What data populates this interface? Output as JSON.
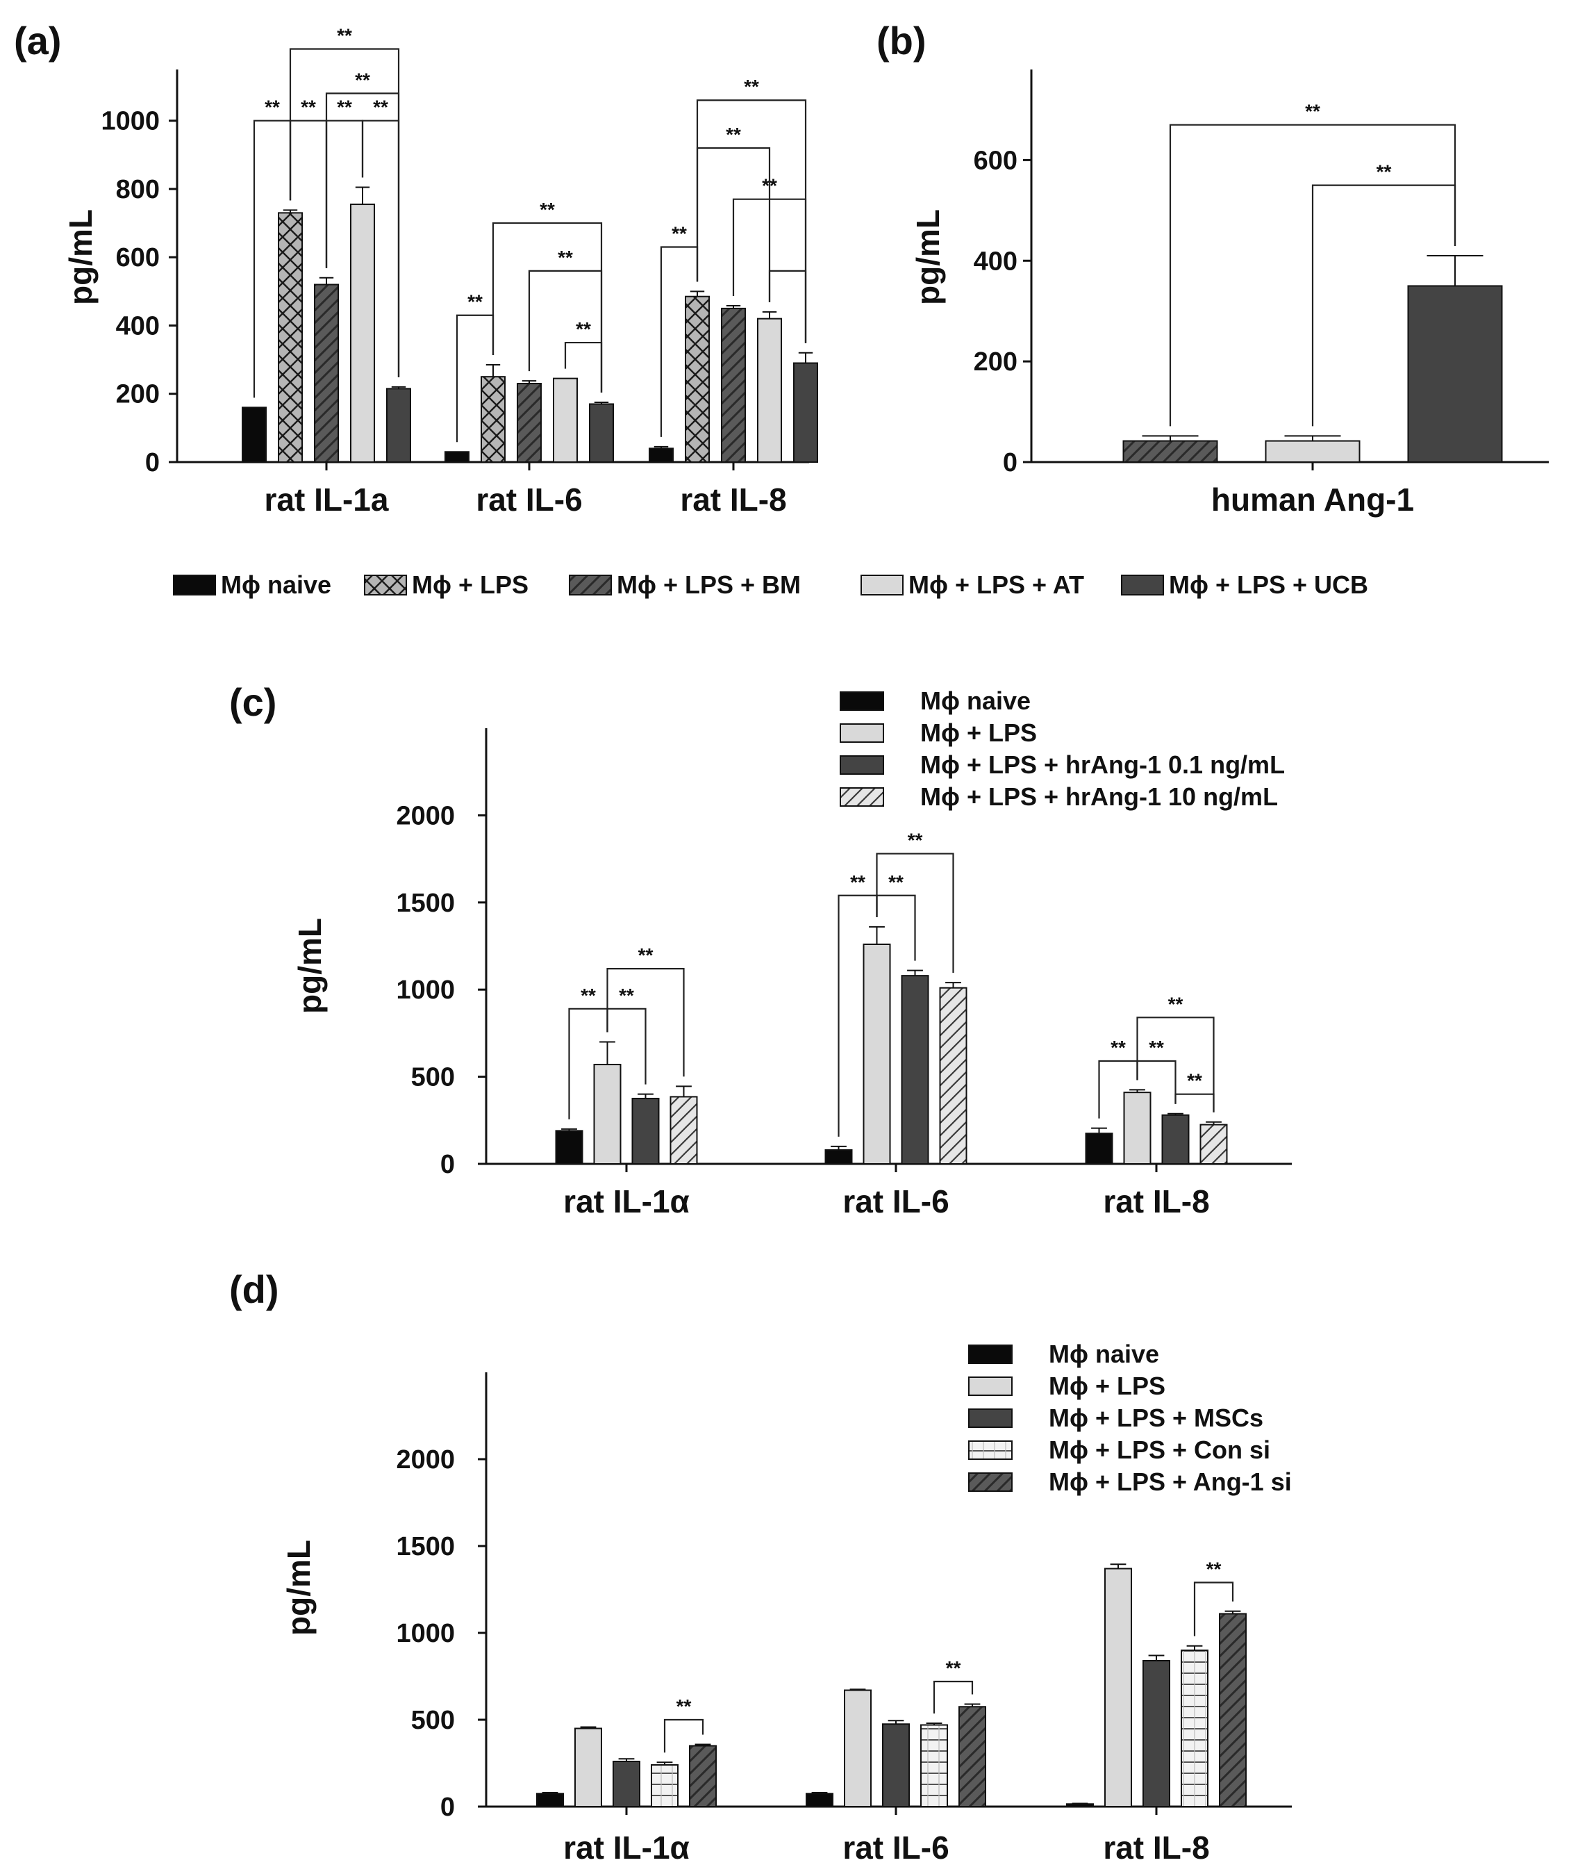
{
  "figure_name": "cytokine-bar-chart-figure",
  "chart_data": [
    {
      "panel": "(a)",
      "type": "bar",
      "ylabel": "pg/mL",
      "ylim": [
        0,
        1150
      ],
      "yticks": [
        0,
        200,
        400,
        600,
        800,
        1000
      ],
      "categories": [
        "rat IL-1a",
        "rat IL-6",
        "rat IL-8"
      ],
      "series": [
        {
          "name": "Mϕ naive",
          "pattern": "black",
          "values": [
            160,
            30,
            40
          ],
          "errors": [
            0,
            0,
            5
          ]
        },
        {
          "name": "Mϕ + LPS",
          "pattern": "crosshatch",
          "values": [
            730,
            250,
            485
          ],
          "errors": [
            8,
            35,
            15
          ]
        },
        {
          "name": "Mϕ + LPS + BM",
          "pattern": "dark-diag",
          "values": [
            520,
            230,
            450
          ],
          "errors": [
            20,
            8,
            8
          ]
        },
        {
          "name": "Mϕ + LPS + AT",
          "pattern": "light",
          "values": [
            755,
            245,
            420
          ],
          "errors": [
            50,
            0,
            20
          ]
        },
        {
          "name": "Mϕ + LPS + UCB",
          "pattern": "dark",
          "values": [
            215,
            170,
            290
          ],
          "errors": [
            5,
            5,
            30
          ]
        }
      ],
      "significance_label": "**",
      "brackets": [
        {
          "cat": 0,
          "from": 0,
          "to": 1,
          "level": 1000
        },
        {
          "cat": 0,
          "from": 1,
          "to": 2,
          "level": 1000
        },
        {
          "cat": 0,
          "from": 2,
          "to": 3,
          "level": 1000
        },
        {
          "cat": 0,
          "from": 3,
          "to": 4,
          "level": 1000
        },
        {
          "cat": 0,
          "from": 2,
          "to": 4,
          "level": 1080
        },
        {
          "cat": 0,
          "from": 1,
          "to": 4,
          "level": 1210
        },
        {
          "cat": 1,
          "from": 0,
          "to": 1,
          "level": 430
        },
        {
          "cat": 1,
          "from": 3,
          "to": 4,
          "level": 350
        },
        {
          "cat": 1,
          "from": 2,
          "to": 4,
          "level": 560
        },
        {
          "cat": 1,
          "from": 1,
          "to": 4,
          "level": 700
        },
        {
          "cat": 2,
          "from": 0,
          "to": 1,
          "level": 630
        },
        {
          "cat": 2,
          "from": 3,
          "to": 4,
          "level": 560,
          "label": ""
        },
        {
          "cat": 2,
          "from": 2,
          "to": 4,
          "level": 770
        },
        {
          "cat": 2,
          "from": 1,
          "to": 3,
          "level": 920
        },
        {
          "cat": 2,
          "from": 1,
          "to": 4,
          "level": 1060
        }
      ]
    },
    {
      "panel": "(b)",
      "type": "bar",
      "ylabel": "pg/mL",
      "ylim": [
        0,
        780
      ],
      "yticks": [
        0,
        200,
        400,
        600
      ],
      "categories": [
        "human Ang-1"
      ],
      "series": [
        {
          "name": "Mϕ + LPS + BM",
          "pattern": "dark-diag",
          "values": [
            42
          ],
          "errors": [
            10
          ]
        },
        {
          "name": "Mϕ + LPS + AT",
          "pattern": "light",
          "values": [
            42
          ],
          "errors": [
            10
          ]
        },
        {
          "name": "Mϕ + LPS + UCB",
          "pattern": "dark",
          "values": [
            350
          ],
          "errors": [
            60
          ]
        }
      ],
      "significance_label": "**",
      "brackets": [
        {
          "cat": 0,
          "from": 1,
          "to": 2,
          "level": 550
        },
        {
          "cat": 0,
          "from": 0,
          "to": 2,
          "level": 670
        }
      ]
    },
    {
      "panel": "(c)",
      "type": "bar",
      "ylabel": "pg/mL",
      "ylim": [
        0,
        2500
      ],
      "yticks": [
        0,
        500,
        1000,
        1500,
        2000
      ],
      "categories": [
        "rat IL-1α",
        "rat IL-6",
        "rat IL-8"
      ],
      "series": [
        {
          "name": "Mϕ naive",
          "pattern": "black",
          "values": [
            190,
            80,
            175
          ],
          "errors": [
            10,
            20,
            30
          ]
        },
        {
          "name": "Mϕ + LPS",
          "pattern": "light",
          "values": [
            570,
            1260,
            410
          ],
          "errors": [
            130,
            100,
            15
          ]
        },
        {
          "name": "Mϕ + LPS + hrAng-1 0.1 ng/mL",
          "pattern": "dark",
          "values": [
            375,
            1080,
            280
          ],
          "errors": [
            25,
            30,
            8
          ]
        },
        {
          "name": "Mϕ + LPS + hrAng-1  10 ng/mL",
          "pattern": "light-diag",
          "values": [
            385,
            1010,
            225
          ],
          "errors": [
            60,
            30,
            15
          ]
        }
      ],
      "significance_label": "**",
      "brackets": [
        {
          "cat": 0,
          "from": 0,
          "to": 1,
          "level": 890
        },
        {
          "cat": 0,
          "from": 1,
          "to": 2,
          "level": 890
        },
        {
          "cat": 0,
          "from": 1,
          "to": 3,
          "level": 1120
        },
        {
          "cat": 1,
          "from": 0,
          "to": 1,
          "level": 1540
        },
        {
          "cat": 1,
          "from": 1,
          "to": 2,
          "level": 1540
        },
        {
          "cat": 1,
          "from": 1,
          "to": 3,
          "level": 1780
        },
        {
          "cat": 2,
          "from": 0,
          "to": 1,
          "level": 590
        },
        {
          "cat": 2,
          "from": 1,
          "to": 2,
          "level": 590
        },
        {
          "cat": 2,
          "from": 2,
          "to": 3,
          "level": 400
        },
        {
          "cat": 2,
          "from": 1,
          "to": 3,
          "level": 840
        }
      ]
    },
    {
      "panel": "(d)",
      "type": "bar",
      "ylabel": "pg/mL",
      "ylim": [
        0,
        2500
      ],
      "yticks": [
        0,
        500,
        1000,
        1500,
        2000
      ],
      "categories": [
        "rat IL-1α",
        "rat IL-6",
        "rat IL-8"
      ],
      "series": [
        {
          "name": "Mϕ naive",
          "pattern": "black",
          "values": [
            75,
            75,
            15
          ],
          "errors": [
            5,
            5,
            3
          ]
        },
        {
          "name": "Mϕ + LPS",
          "pattern": "light",
          "values": [
            450,
            670,
            1370
          ],
          "errors": [
            8,
            5,
            25
          ]
        },
        {
          "name": "Mϕ + LPS + MSCs",
          "pattern": "dark",
          "values": [
            260,
            475,
            840
          ],
          "errors": [
            15,
            20,
            30
          ]
        },
        {
          "name": "Mϕ + LPS + Con si",
          "pattern": "hstripe",
          "values": [
            240,
            470,
            900
          ],
          "errors": [
            15,
            10,
            25
          ]
        },
        {
          "name": "Mϕ + LPS + Ang-1 si",
          "pattern": "dark-diag",
          "values": [
            350,
            575,
            1110
          ],
          "errors": [
            8,
            15,
            15
          ]
        }
      ],
      "significance_label": "**",
      "brackets": [
        {
          "cat": 0,
          "from": 3,
          "to": 4,
          "level": 500
        },
        {
          "cat": 1,
          "from": 3,
          "to": 4,
          "level": 720
        },
        {
          "cat": 2,
          "from": 3,
          "to": 4,
          "level": 1290
        }
      ]
    }
  ],
  "legend_ab": {
    "items": [
      {
        "name": "Mϕ naive",
        "pattern": "black"
      },
      {
        "name": "Mϕ + LPS",
        "pattern": "crosshatch"
      },
      {
        "name": "Mϕ + LPS + BM",
        "pattern": "dark-diag"
      },
      {
        "name": "Mϕ + LPS + AT",
        "pattern": "light"
      },
      {
        "name": "Mϕ + LPS + UCB",
        "pattern": "dark"
      }
    ]
  },
  "colors": {
    "black": "#0a0a0a",
    "dark": "#444444",
    "light": "#d9d9d9",
    "hatch_bg": "#aaaaaa",
    "axis": "#111111"
  }
}
